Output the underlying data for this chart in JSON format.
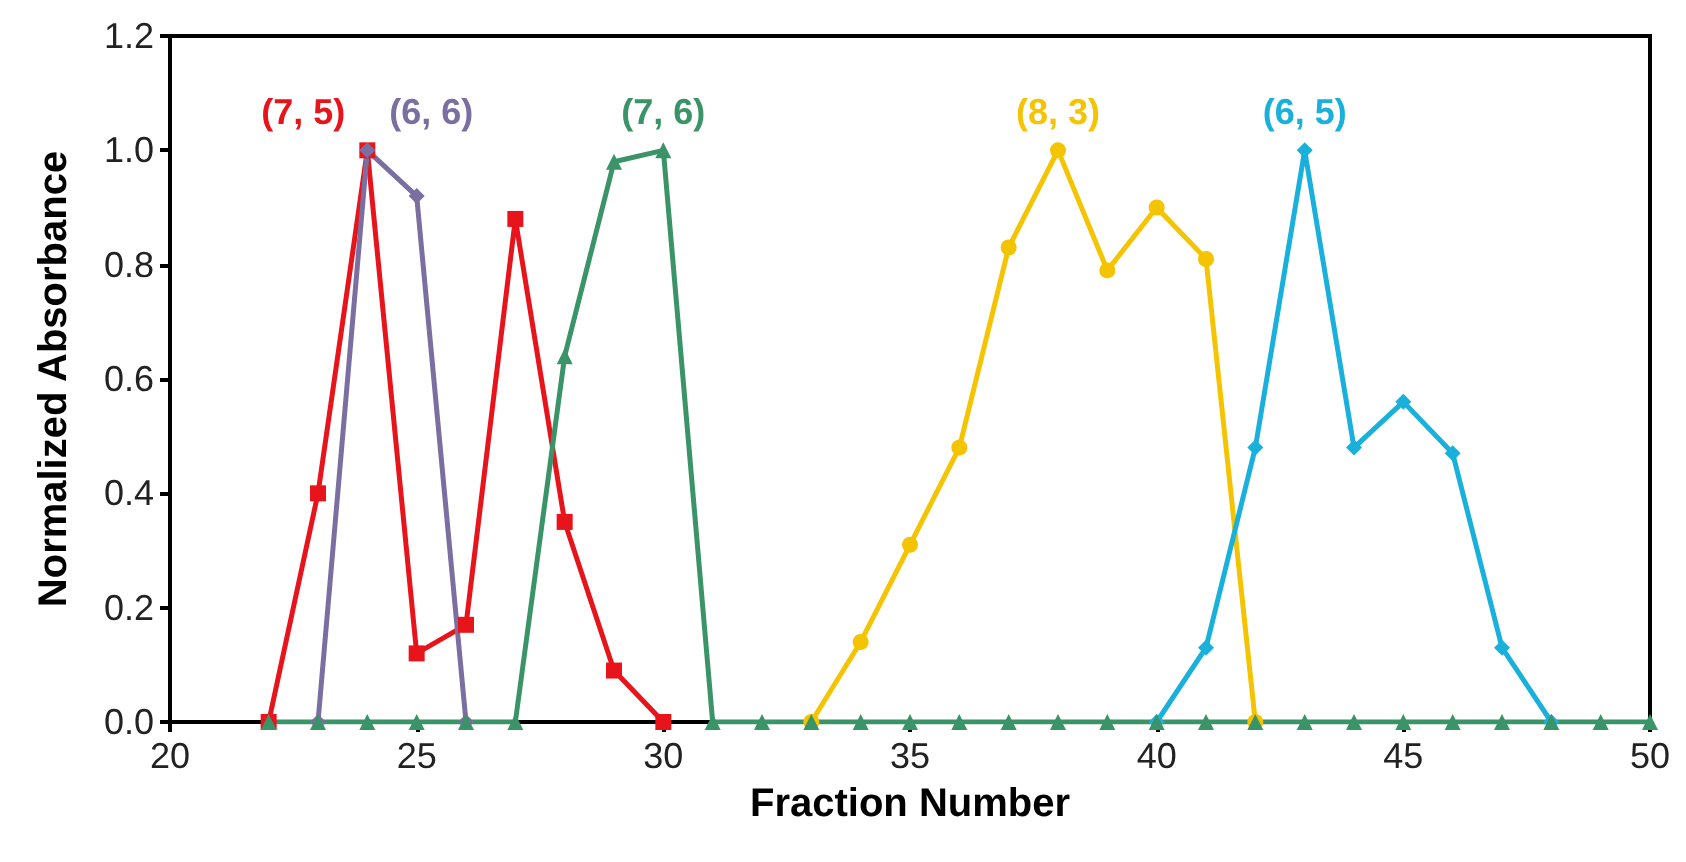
{
  "chart_data": {
    "type": "line",
    "xlabel": "Fraction Number",
    "ylabel": "Normalized Absorbance",
    "x": [
      22,
      23,
      24,
      25,
      26,
      27,
      28,
      29,
      30,
      31,
      32,
      33,
      34,
      35,
      36,
      37,
      38,
      39,
      40,
      41,
      42,
      43,
      44,
      45,
      46,
      47,
      48,
      49,
      50
    ],
    "series": [
      {
        "name": "(7, 5)",
        "color": "#e8141b",
        "marker": "square",
        "values": [
          0,
          0.4,
          1.0,
          0.12,
          0.17,
          0.88,
          0.35,
          0.09,
          0,
          null,
          null,
          null,
          null,
          null,
          null,
          null,
          null,
          null,
          null,
          null,
          null,
          null,
          null,
          null,
          null,
          null,
          null,
          null,
          null
        ]
      },
      {
        "name": "(6, 6)",
        "color": "#7a6fa0",
        "marker": "diamond",
        "values": [
          null,
          0,
          1.0,
          0.92,
          0,
          null,
          null,
          null,
          null,
          null,
          null,
          null,
          null,
          null,
          null,
          null,
          null,
          null,
          null,
          null,
          null,
          null,
          null,
          null,
          null,
          null,
          null,
          null,
          null
        ]
      },
      {
        "name": "(8, 3)",
        "color": "#f5c400",
        "marker": "circle",
        "values": [
          null,
          null,
          null,
          null,
          null,
          null,
          null,
          null,
          null,
          null,
          null,
          0,
          0.14,
          0.31,
          0.48,
          0.83,
          1.0,
          0.79,
          0.9,
          0.81,
          0,
          null,
          null,
          null,
          null,
          null,
          null,
          null,
          null
        ]
      },
      {
        "name": "(6, 5)",
        "color": "#1ab0dc",
        "marker": "diamond",
        "values": [
          null,
          null,
          null,
          null,
          null,
          null,
          null,
          null,
          null,
          null,
          null,
          null,
          null,
          null,
          null,
          null,
          null,
          null,
          0,
          0.13,
          0.48,
          1.0,
          0.48,
          0.56,
          0.47,
          0.13,
          0,
          null,
          null
        ]
      },
      {
        "name": "(7, 6)",
        "color": "#3a9468",
        "marker": "triangle",
        "values": [
          0,
          0,
          0,
          0,
          0,
          0,
          0.64,
          0.98,
          1.0,
          0,
          0,
          0,
          0,
          0,
          0,
          0,
          0,
          0,
          0,
          0,
          0,
          0,
          0,
          0,
          0,
          0,
          0,
          0,
          0
        ]
      }
    ],
    "xlim": [
      20,
      50
    ],
    "xticks": [
      20,
      25,
      30,
      35,
      40,
      45,
      50
    ],
    "ylim": [
      0,
      1.2
    ],
    "yticks": [
      {
        "value": 0,
        "label": "0.0"
      },
      {
        "value": 0.2,
        "label": "0.2"
      },
      {
        "value": 0.4,
        "label": "0.4"
      },
      {
        "value": 0.6,
        "label": "0.6"
      },
      {
        "value": 0.8,
        "label": "0.8"
      },
      {
        "value": 1.0,
        "label": "1.0"
      },
      {
        "value": 1.2,
        "label": "1.2"
      }
    ],
    "grid": false,
    "legend": false,
    "line_style": "solid"
  }
}
